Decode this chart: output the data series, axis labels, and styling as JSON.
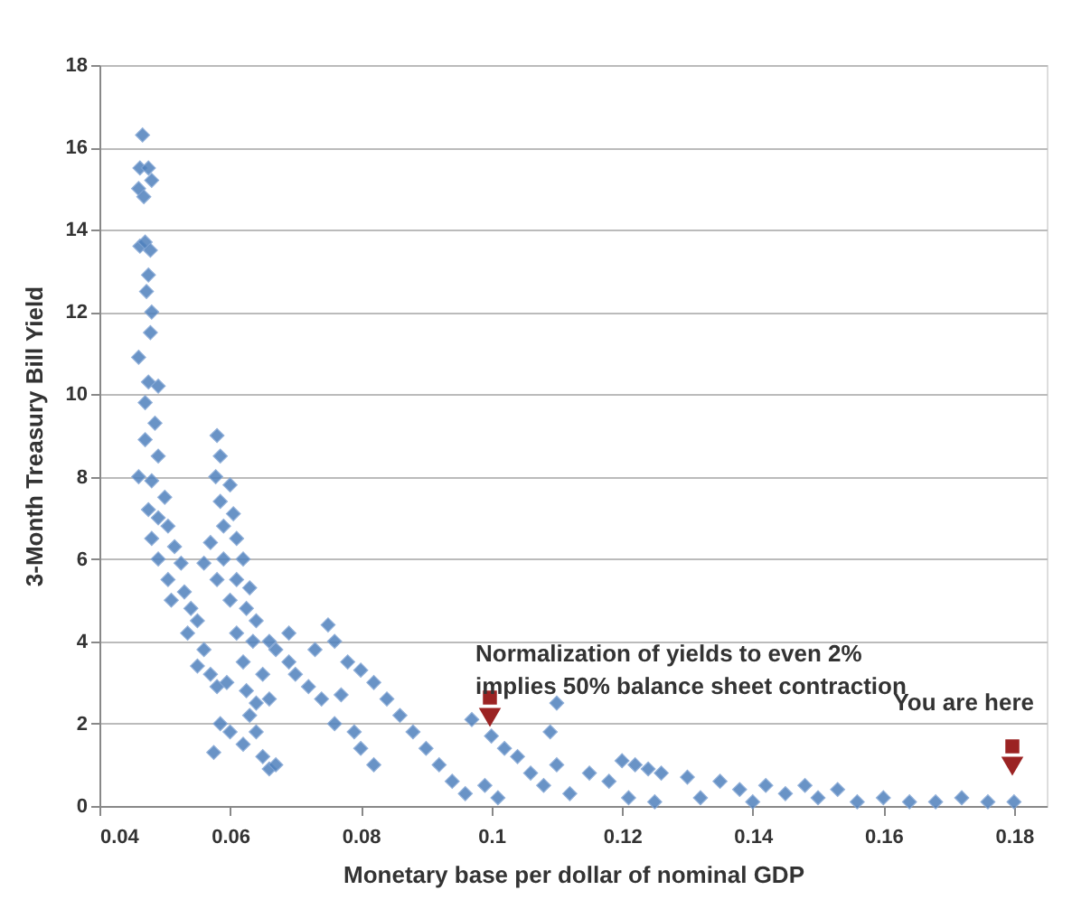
{
  "chart_data": {
    "type": "scatter",
    "xlabel": "Monetary base per dollar of nominal GDP",
    "ylabel": "3-Month Treasury Bill Yield",
    "x": [
      0.0466,
      0.0462,
      0.0475,
      0.046,
      0.0468,
      0.048,
      0.0462,
      0.047,
      0.0478,
      0.0475,
      0.0472,
      0.048,
      0.0478,
      0.046,
      0.0475,
      0.049,
      0.047,
      0.0485,
      0.047,
      0.049,
      0.046,
      0.048,
      0.05,
      0.0475,
      0.049,
      0.0505,
      0.048,
      0.0515,
      0.049,
      0.0525,
      0.0505,
      0.053,
      0.051,
      0.054,
      0.055,
      0.0535,
      0.056,
      0.055,
      0.057,
      0.058,
      0.0595,
      0.058,
      0.0585,
      0.0578,
      0.06,
      0.0585,
      0.0605,
      0.059,
      0.061,
      0.057,
      0.056,
      0.059,
      0.062,
      0.058,
      0.061,
      0.063,
      0.06,
      0.0625,
      0.064,
      0.061,
      0.0635,
      0.066,
      0.062,
      0.065,
      0.0625,
      0.064,
      0.0585,
      0.06,
      0.0575,
      0.062,
      0.064,
      0.065,
      0.066,
      0.067,
      0.063,
      0.066,
      0.067,
      0.069,
      0.07,
      0.072,
      0.074,
      0.069,
      0.075,
      0.076,
      0.073,
      0.078,
      0.08,
      0.082,
      0.077,
      0.079,
      0.08,
      0.082,
      0.076,
      0.084,
      0.086,
      0.088,
      0.09,
      0.092,
      0.094,
      0.096,
      0.097,
      0.1,
      0.102,
      0.104,
      0.099,
      0.101,
      0.106,
      0.108,
      0.11,
      0.109,
      0.11,
      0.112,
      0.115,
      0.118,
      0.12,
      0.122,
      0.124,
      0.126,
      0.121,
      0.125,
      0.13,
      0.132,
      0.135,
      0.138,
      0.14,
      0.142,
      0.145,
      0.148,
      0.15,
      0.153,
      0.156,
      0.16,
      0.164,
      0.168,
      0.172,
      0.176,
      0.18
    ],
    "values": [
      16.3,
      15.5,
      15.5,
      15.0,
      14.8,
      15.2,
      13.6,
      13.7,
      13.5,
      12.9,
      12.5,
      12.0,
      11.5,
      10.9,
      10.3,
      10.2,
      9.8,
      9.3,
      8.9,
      8.5,
      8.0,
      7.9,
      7.5,
      7.2,
      7.0,
      6.8,
      6.5,
      6.3,
      6.0,
      5.9,
      5.5,
      5.2,
      5.0,
      4.8,
      4.5,
      4.2,
      3.8,
      3.4,
      3.2,
      2.9,
      3.0,
      9.0,
      8.5,
      8.0,
      7.8,
      7.4,
      7.1,
      6.8,
      6.5,
      6.4,
      5.9,
      6.0,
      6.0,
      5.5,
      5.5,
      5.3,
      5.0,
      4.8,
      4.5,
      4.2,
      4.0,
      4.0,
      3.5,
      3.2,
      2.8,
      2.5,
      2.0,
      1.8,
      1.3,
      1.5,
      1.8,
      1.2,
      0.9,
      1.0,
      2.2,
      2.6,
      3.8,
      3.5,
      3.2,
      2.9,
      2.6,
      4.2,
      4.4,
      4.0,
      3.8,
      3.5,
      3.3,
      3.0,
      2.7,
      1.8,
      1.4,
      1.0,
      2.0,
      2.6,
      2.2,
      1.8,
      1.4,
      1.0,
      0.6,
      0.3,
      2.1,
      1.7,
      1.4,
      1.2,
      0.5,
      0.2,
      0.8,
      0.5,
      2.5,
      1.8,
      1.0,
      0.3,
      0.8,
      0.6,
      1.1,
      1.0,
      0.9,
      0.8,
      0.2,
      0.1,
      0.7,
      0.2,
      0.6,
      0.4,
      0.1,
      0.5,
      0.3,
      0.5,
      0.2,
      0.4,
      0.1,
      0.2,
      0.1,
      0.1,
      0.2,
      0.1,
      0.1
    ],
    "color": "#4f81bd",
    "marker": "diamond",
    "xlim": [
      0.04,
      0.185
    ],
    "xticks": [
      0.04,
      0.06,
      0.08,
      {
        "value": 0.1,
        "label": "0.1"
      },
      0.12,
      0.14,
      0.16,
      0.18
    ],
    "ylim": [
      0,
      18
    ],
    "yticks": [
      0,
      2,
      4,
      6,
      8,
      10,
      12,
      14,
      16,
      18
    ],
    "grid": "y",
    "legend": false,
    "annotations": [
      "Normalization of yields to even 2%\nimplies 50% balance sheet contraction",
      "You are here"
    ]
  }
}
